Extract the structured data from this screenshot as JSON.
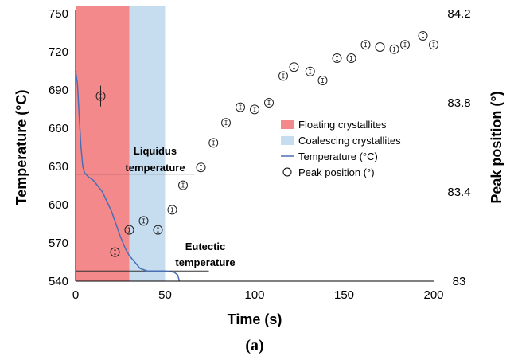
{
  "chart_data": {
    "type": "scatter",
    "caption": "(a)",
    "xlabel": "Time (s)",
    "ylabel_left": "Temperature (°C)",
    "ylabel_right": "Peak position (°)",
    "xlim": [
      0,
      200
    ],
    "ylim_left": [
      540,
      750
    ],
    "ylim_right": [
      83,
      84.2
    ],
    "x_ticks": [
      0,
      50,
      100,
      150,
      200
    ],
    "y_left_ticks": [
      540,
      570,
      600,
      630,
      660,
      690,
      720,
      750
    ],
    "y_right_ticks": [
      "83",
      "83.4",
      "83.8",
      "84.2"
    ],
    "y_right_tick_values": [
      83,
      83.4,
      83.8,
      84.2
    ],
    "regions": [
      {
        "name": "Floating crystallites",
        "x_start": 0,
        "x_end": 30,
        "color": "#f4898b"
      },
      {
        "name": "Coalescing crystallites",
        "x_start": 30,
        "x_end": 50,
        "color": "#c6ddf0"
      }
    ],
    "reference_lines": [
      {
        "label_line1": "Liquidus",
        "label_line2": "temperature",
        "y": 624,
        "x_start": 0,
        "x_end": 62
      },
      {
        "label_line1": "Eutectic",
        "label_line2": "temperature",
        "y": 548,
        "x_start": 0,
        "x_end": 70
      }
    ],
    "series": [
      {
        "name": "Temperature (°C)",
        "axis": "left",
        "style": "line",
        "color": "#4a6fb5",
        "x": [
          0,
          1,
          2,
          3,
          4,
          5,
          7,
          10,
          15,
          20,
          25,
          28,
          30,
          33,
          36,
          40,
          43,
          46,
          50,
          55,
          57,
          58
        ],
        "y": [
          705,
          695,
          670,
          645,
          630,
          625,
          622,
          619,
          610,
          595,
          575,
          565,
          560,
          555,
          550,
          548,
          548,
          548,
          548,
          547,
          545,
          540
        ]
      },
      {
        "name": "Peak position (°)",
        "axis": "right",
        "style": "markers",
        "color": "#000000",
        "x": [
          14,
          22,
          30,
          38,
          46,
          54,
          60,
          70,
          77,
          84,
          92,
          100,
          108,
          116,
          122,
          131,
          138,
          146,
          154,
          162,
          170,
          178,
          184,
          194,
          200
        ],
        "y": [
          83.83,
          83.13,
          83.23,
          83.27,
          83.23,
          83.32,
          83.43,
          83.51,
          83.62,
          83.71,
          83.78,
          83.77,
          83.8,
          83.92,
          83.96,
          83.94,
          83.9,
          84.0,
          84.0,
          84.06,
          84.05,
          84.04,
          84.06,
          84.1,
          84.06
        ]
      }
    ],
    "legend": {
      "placement": "center-right",
      "entries": [
        {
          "label": "Floating crystallites",
          "kind": "patch",
          "color": "#f4898b"
        },
        {
          "label": "Coalescing crystallites",
          "kind": "patch",
          "color": "#c6ddf0"
        },
        {
          "label": "Temperature (°C)",
          "kind": "line",
          "color": "#4a6fb5"
        },
        {
          "label": "Peak position (°)",
          "kind": "marker",
          "color": "#000000"
        }
      ]
    }
  }
}
